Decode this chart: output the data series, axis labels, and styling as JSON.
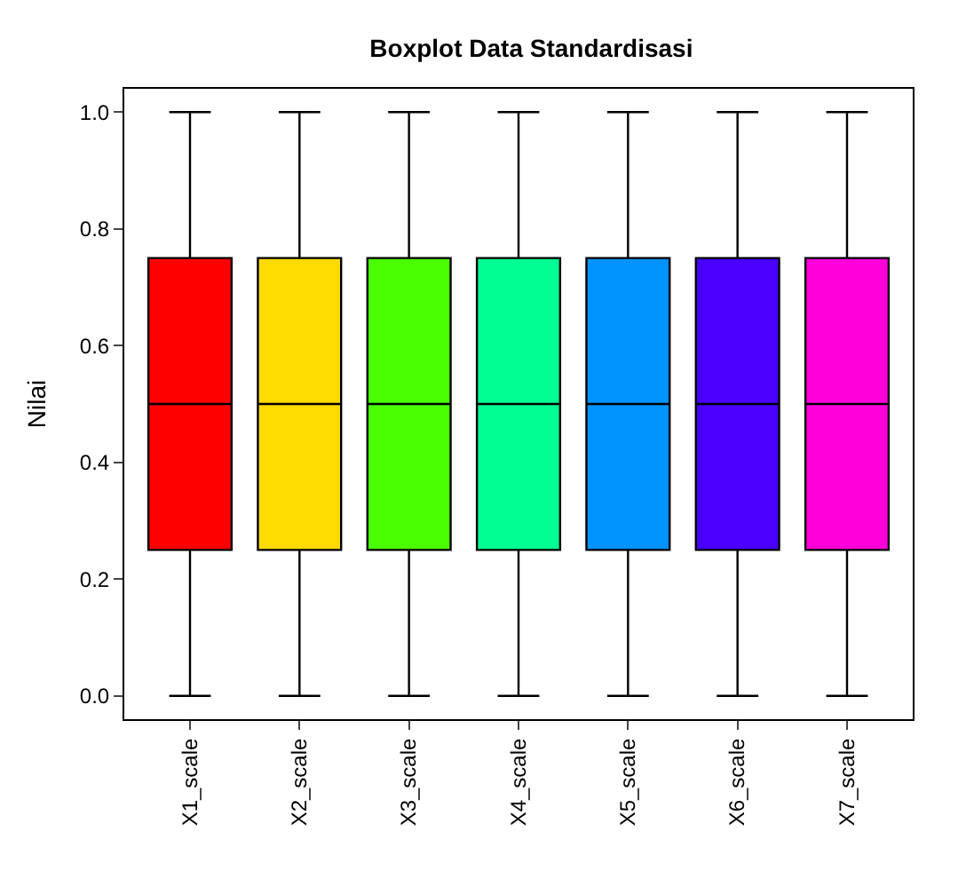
{
  "chart_data": {
    "type": "box",
    "title": "Boxplot Data Standardisasi",
    "ylabel": "Nilai",
    "categories": [
      "X1_scale",
      "X2_scale",
      "X3_scale",
      "X4_scale",
      "X5_scale",
      "X6_scale",
      "X7_scale"
    ],
    "colors": [
      "#ff0000",
      "#ffdb00",
      "#49ff00",
      "#00ff92",
      "#0092ff",
      "#4900ff",
      "#ff00db"
    ],
    "boxes": [
      {
        "low": 0,
        "q1": 0.25,
        "median": 0.5,
        "q3": 0.75,
        "high": 1
      },
      {
        "low": 0,
        "q1": 0.25,
        "median": 0.5,
        "q3": 0.75,
        "high": 1
      },
      {
        "low": 0,
        "q1": 0.25,
        "median": 0.5,
        "q3": 0.75,
        "high": 1
      },
      {
        "low": 0,
        "q1": 0.25,
        "median": 0.5,
        "q3": 0.75,
        "high": 1
      },
      {
        "low": 0,
        "q1": 0.25,
        "median": 0.5,
        "q3": 0.75,
        "high": 1
      },
      {
        "low": 0,
        "q1": 0.25,
        "median": 0.5,
        "q3": 0.75,
        "high": 1
      },
      {
        "low": 0,
        "q1": 0.25,
        "median": 0.5,
        "q3": 0.75,
        "high": 1
      }
    ],
    "ylim": [
      -0.04,
      1.04
    ],
    "yticks": [
      {
        "value": 0,
        "label": "0.0"
      },
      0.2,
      0.4,
      0.6,
      0.8,
      {
        "value": 1,
        "label": "1.0"
      }
    ]
  }
}
